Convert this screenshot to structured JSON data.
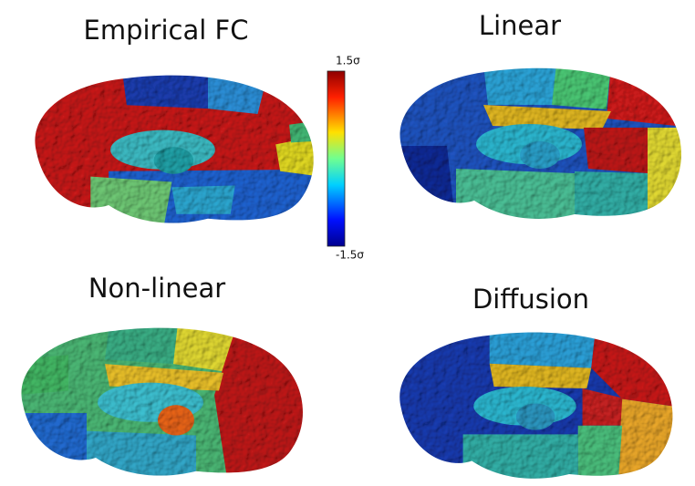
{
  "panels": [
    {
      "title": "Empirical FC"
    },
    {
      "title": "Linear"
    },
    {
      "title": "Non-linear"
    },
    {
      "title": "Diffusion"
    }
  ],
  "colorbar": {
    "max_label": "1.5σ",
    "min_label": "-1.5σ"
  }
}
